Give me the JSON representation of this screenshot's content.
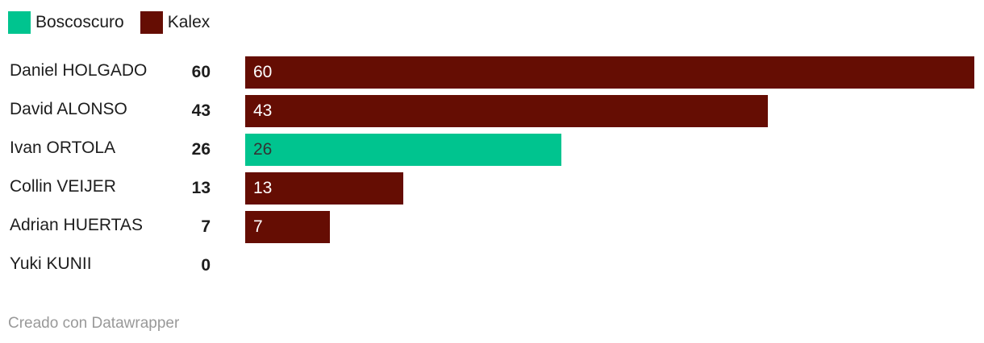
{
  "chart_data": {
    "type": "bar",
    "orientation": "horizontal",
    "categories": [
      "Daniel HOLGADO",
      "David ALONSO",
      "Ivan ORTOLA",
      "Collin VEIJER",
      "Adrian HUERTAS",
      "Yuki KUNII"
    ],
    "values": [
      60,
      43,
      26,
      13,
      7,
      0
    ],
    "teams": [
      "Kalex",
      "Kalex",
      "Boscoscuro",
      "Kalex",
      "Kalex",
      "Kalex"
    ],
    "legend": [
      {
        "name": "Boscoscuro",
        "color": "#00c48f"
      },
      {
        "name": "Kalex",
        "color": "#650d03"
      }
    ],
    "legend_placement": "top-left",
    "xlim": [
      0,
      60
    ],
    "grid": false
  },
  "footer": "Creado con Datawrapper"
}
